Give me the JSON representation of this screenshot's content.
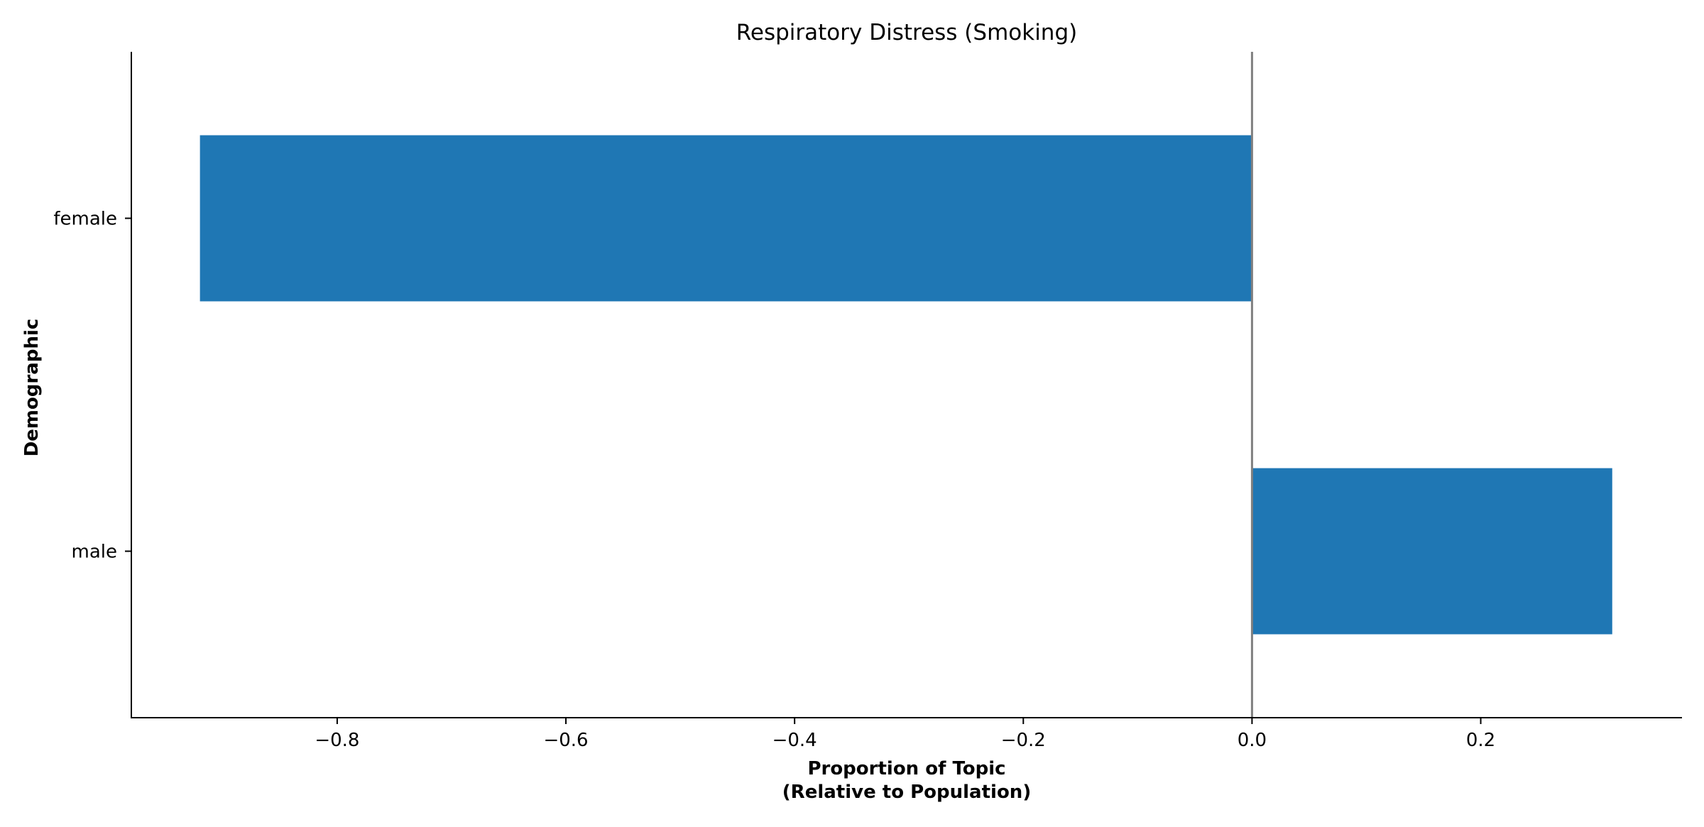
{
  "chart_data": {
    "type": "bar",
    "orientation": "horizontal",
    "title": "Respiratory Distress (Smoking)",
    "xlabel_lines": [
      "Proportion of Topic",
      "(Relative to Population)"
    ],
    "ylabel": "Demographic",
    "categories": [
      "female",
      "male"
    ],
    "values": [
      -0.92,
      0.315
    ],
    "xlim": [
      -0.98,
      0.376
    ],
    "xticks": [
      -0.8,
      -0.6,
      -0.4,
      -0.2,
      0.0,
      0.2
    ],
    "xtick_labels": [
      "−0.8",
      "−0.6",
      "−0.4",
      "−0.2",
      "0.0",
      "0.2"
    ],
    "zero_line": true,
    "grid": false,
    "legend": "none",
    "colors": {
      "bar": "#1f77b4",
      "zero_line": "#808080",
      "axis": "#000000"
    }
  }
}
